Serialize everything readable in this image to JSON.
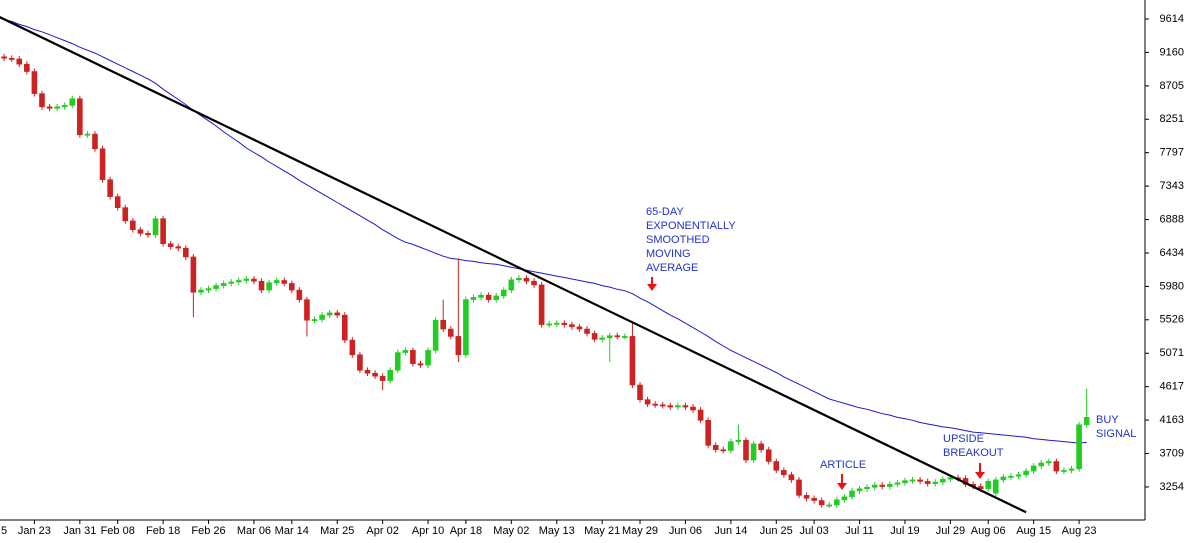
{
  "chart_data": {
    "type": "candlestick",
    "categories": [
      "5",
      null,
      null,
      null,
      null,
      null,
      "Jan 23",
      null,
      null,
      null,
      null,
      null,
      "Jan 31",
      null,
      null,
      null,
      null,
      "Feb 08",
      null,
      null,
      null,
      null,
      null,
      "Feb 18",
      null,
      null,
      null,
      null,
      null,
      "Feb 26",
      null,
      null,
      null,
      null,
      null,
      "Mar 06",
      null,
      null,
      null,
      null,
      "Mar 14",
      null,
      null,
      null,
      null,
      null,
      "Mar 25",
      null,
      null,
      null,
      null,
      null,
      "Apr 02",
      null,
      null,
      null,
      null,
      null,
      "Apr 10",
      null,
      null,
      null,
      null,
      "Apr 18",
      null,
      null,
      null,
      null,
      null,
      "May 02",
      null,
      null,
      null,
      null,
      null,
      "May 13",
      null,
      null,
      null,
      null,
      null,
      "May 21",
      null,
      null,
      null,
      null,
      "May 29",
      null,
      null,
      null,
      null,
      null,
      "Jun 06",
      null,
      null,
      null,
      null,
      null,
      "Jun 14",
      null,
      null,
      null,
      null,
      null,
      "Jun 25",
      null,
      null,
      null,
      null,
      "Jul 03",
      null,
      null,
      null,
      null,
      null,
      "Jul 11",
      null,
      null,
      null,
      null,
      null,
      "Jul 19",
      null,
      null,
      null,
      null,
      null,
      "Jul 29",
      null,
      null,
      null,
      null,
      "Aug 06",
      null,
      null,
      null,
      null,
      null,
      "Aug 15",
      null,
      null,
      null,
      null,
      null,
      "Aug 23",
      null
    ],
    "open": [
      9120,
      9100,
      9100,
      9080,
      9070,
      9000,
      8900,
      8600,
      8420,
      8400,
      8420,
      8440,
      8530,
      8040,
      8050,
      7850,
      7430,
      7200,
      7050,
      6870,
      6750,
      6700,
      6680,
      6900,
      6560,
      6520,
      6500,
      6380,
      5900,
      5930,
      5950,
      5990,
      6020,
      6040,
      6060,
      6080,
      6050,
      5930,
      6030,
      6060,
      6020,
      5930,
      5800,
      5520,
      5530,
      5590,
      5620,
      5590,
      5250,
      5050,
      4840,
      4800,
      4760,
      4700,
      4840,
      5080,
      5110,
      4930,
      4910,
      5110,
      5520,
      5400,
      5300,
      5050,
      5800,
      5830,
      5860,
      5800,
      5850,
      5930,
      6070,
      6090,
      6050,
      6000,
      5460,
      5470,
      5480,
      5460,
      5430,
      5400,
      5340,
      5260,
      5280,
      5310,
      5300,
      5300,
      4640,
      4440,
      4380,
      4370,
      4360,
      4340,
      4360,
      4340,
      4300,
      4160,
      3820,
      3760,
      3750,
      3870,
      3890,
      3620,
      3840,
      3760,
      3600,
      3480,
      3420,
      3350,
      3140,
      3100,
      3070,
      3010,
      3010,
      3080,
      3120,
      3200,
      3230,
      3250,
      3280,
      3260,
      3290,
      3310,
      3340,
      3350,
      3330,
      3300,
      3320,
      3360,
      3380,
      3370,
      3290,
      3260,
      3230,
      3170,
      3350,
      3390,
      3400,
      3420,
      3470,
      3540,
      3580,
      3600,
      3470,
      3480,
      3500,
      4100
    ],
    "high": [
      9160,
      9140,
      9140,
      9120,
      9110,
      9040,
      8940,
      8640,
      8460,
      8460,
      8480,
      8570,
      8570,
      8090,
      8090,
      7890,
      7470,
      7240,
      7090,
      6910,
      6790,
      6740,
      6940,
      6940,
      6600,
      6560,
      6540,
      6420,
      5970,
      5990,
      6030,
      6060,
      6080,
      6100,
      6120,
      6120,
      6090,
      6070,
      6100,
      6100,
      6060,
      5970,
      5840,
      5570,
      5630,
      5660,
      5660,
      5630,
      5290,
      5090,
      4880,
      4840,
      4800,
      4880,
      5120,
      5150,
      5150,
      4970,
      5150,
      5560,
      5800,
      5440,
      6360,
      5840,
      5870,
      5900,
      5900,
      5890,
      5970,
      6110,
      6130,
      6130,
      6090,
      6040,
      5510,
      5520,
      5520,
      5500,
      5470,
      5440,
      5380,
      5320,
      5350,
      5350,
      5340,
      5500,
      4680,
      4480,
      4420,
      4410,
      4400,
      4400,
      4400,
      4380,
      4340,
      4200,
      3860,
      3800,
      3910,
      4100,
      3930,
      3880,
      3880,
      3800,
      3640,
      3520,
      3460,
      3390,
      3180,
      3140,
      3110,
      3050,
      3120,
      3160,
      3240,
      3270,
      3290,
      3320,
      3320,
      3330,
      3350,
      3380,
      3390,
      3390,
      3370,
      3360,
      3400,
      3420,
      3420,
      3410,
      3330,
      3300,
      3370,
      3390,
      3430,
      3440,
      3460,
      3510,
      3580,
      3620,
      3640,
      3640,
      3520,
      3540,
      4140,
      4590
    ],
    "low": [
      9060,
      9060,
      9040,
      9030,
      8960,
      8860,
      8560,
      8380,
      8360,
      8360,
      8380,
      8400,
      8000,
      8000,
      7810,
      7390,
      7160,
      7010,
      6830,
      6710,
      6660,
      6640,
      6640,
      6520,
      6480,
      6460,
      6340,
      5560,
      5860,
      5890,
      5910,
      5950,
      5980,
      6000,
      6020,
      6010,
      5890,
      5890,
      5990,
      5980,
      5890,
      5760,
      5300,
      5480,
      5490,
      5550,
      5550,
      5210,
      5010,
      4800,
      4760,
      4720,
      4570,
      4660,
      4800,
      5040,
      4890,
      4870,
      4870,
      5070,
      5360,
      5260,
      4950,
      5010,
      5760,
      5790,
      5760,
      5760,
      5810,
      5890,
      6030,
      6010,
      5960,
      5420,
      5420,
      5430,
      5420,
      5390,
      5360,
      5300,
      5220,
      5220,
      4950,
      5260,
      5260,
      4600,
      4400,
      4340,
      4330,
      4320,
      4300,
      4300,
      4300,
      4260,
      4120,
      3780,
      3720,
      3710,
      3710,
      3830,
      3580,
      3580,
      3720,
      3560,
      3440,
      3380,
      3310,
      3100,
      3060,
      3030,
      2970,
      2970,
      2970,
      3040,
      3080,
      3160,
      3190,
      3210,
      3220,
      3220,
      3250,
      3270,
      3300,
      3290,
      3260,
      3260,
      3280,
      3320,
      3330,
      3250,
      3220,
      3190,
      3190,
      3130,
      3310,
      3350,
      3360,
      3380,
      3430,
      3500,
      3540,
      3430,
      3430,
      3440,
      3460,
      4060
    ],
    "close": [
      9100,
      9100,
      9080,
      9070,
      9000,
      8900,
      8600,
      8420,
      8400,
      8420,
      8440,
      8530,
      8040,
      8050,
      7850,
      7430,
      7200,
      7050,
      6870,
      6750,
      6700,
      6680,
      6900,
      6560,
      6520,
      6500,
      6380,
      5900,
      5930,
      5950,
      5990,
      6020,
      6040,
      6060,
      6080,
      6050,
      5930,
      6030,
      6060,
      6020,
      5930,
      5800,
      5520,
      5530,
      5590,
      5620,
      5590,
      5250,
      5050,
      4840,
      4800,
      4760,
      4700,
      4840,
      5080,
      5110,
      4930,
      4910,
      5110,
      5520,
      5400,
      5300,
      5050,
      5800,
      5830,
      5860,
      5800,
      5850,
      5930,
      6070,
      6090,
      6050,
      6000,
      5460,
      5470,
      5480,
      5460,
      5430,
      5400,
      5340,
      5260,
      5280,
      5310,
      5300,
      5300,
      4640,
      4440,
      4380,
      4370,
      4360,
      4340,
      4360,
      4340,
      4300,
      4160,
      3820,
      3760,
      3750,
      3870,
      3890,
      3620,
      3840,
      3760,
      3600,
      3480,
      3420,
      3350,
      3140,
      3100,
      3070,
      3010,
      3010,
      3080,
      3120,
      3200,
      3230,
      3250,
      3280,
      3260,
      3290,
      3310,
      3340,
      3350,
      3330,
      3300,
      3320,
      3360,
      3380,
      3370,
      3290,
      3260,
      3230,
      3330,
      3350,
      3390,
      3400,
      3420,
      3470,
      3540,
      3580,
      3600,
      3470,
      3480,
      3500,
      4100,
      4200
    ],
    "up_color": "#22cc22",
    "down_color": "#cc2222",
    "ema": {
      "color": "#1a1acc",
      "values": [
        9660,
        9640,
        9610,
        9580,
        9540,
        9510,
        9470,
        9440,
        9400,
        9360,
        9320,
        9280,
        9230,
        9190,
        9150,
        9100,
        9050,
        9000,
        8950,
        8900,
        8850,
        8800,
        8740,
        8660,
        8590,
        8520,
        8450,
        8370,
        8300,
        8230,
        8160,
        8080,
        8010,
        7940,
        7860,
        7800,
        7740,
        7670,
        7610,
        7550,
        7490,
        7420,
        7360,
        7300,
        7240,
        7180,
        7120,
        7060,
        7000,
        6940,
        6880,
        6820,
        6750,
        6690,
        6630,
        6580,
        6550,
        6510,
        6470,
        6430,
        6390,
        6360,
        6350,
        6330,
        6320,
        6300,
        6290,
        6280,
        6260,
        6240,
        6220,
        6200,
        6180,
        6160,
        6140,
        6120,
        6100,
        6080,
        6060,
        6040,
        6020,
        5990,
        5970,
        5940,
        5920,
        5880,
        5820,
        5770,
        5710,
        5650,
        5590,
        5540,
        5480,
        5420,
        5360,
        5300,
        5230,
        5170,
        5110,
        5060,
        5010,
        4960,
        4910,
        4860,
        4810,
        4750,
        4700,
        4650,
        4600,
        4550,
        4500,
        4450,
        4420,
        4390,
        4360,
        4330,
        4310,
        4280,
        4250,
        4230,
        4200,
        4180,
        4160,
        4130,
        4110,
        4090,
        4070,
        4060,
        4040,
        4020,
        4000,
        3990,
        3980,
        3970,
        3960,
        3950,
        3940,
        3930,
        3910,
        3900,
        3890,
        3880,
        3870,
        3860,
        3850,
        3860
      ]
    },
    "trendline": {
      "color": "#000000",
      "x": [
        0,
        137
      ],
      "values": [
        9710,
        2910
      ]
    },
    "annotations": [
      {
        "lines": [
          "65-DAY",
          "EXPONENTIALLY",
          "SMOOTHED",
          "MOVING",
          "AVERAGE"
        ]
      },
      {
        "lines": [
          "ARTICLE"
        ]
      },
      {
        "lines": [
          "UPSIDE",
          "BREAKOUT"
        ]
      },
      {
        "lines": [
          "BUY",
          "SIGNAL"
        ]
      }
    ],
    "annotation_color": "#2233cc",
    "arrow_color": "#ee1111",
    "ylim": [
      2805,
      9872
    ],
    "yticks": [
      3254,
      3709,
      4163,
      4617,
      5071,
      5526,
      5980,
      6434,
      6888,
      7343,
      7797,
      8251,
      8705,
      9160,
      9614
    ],
    "y_axis_side": "right"
  }
}
